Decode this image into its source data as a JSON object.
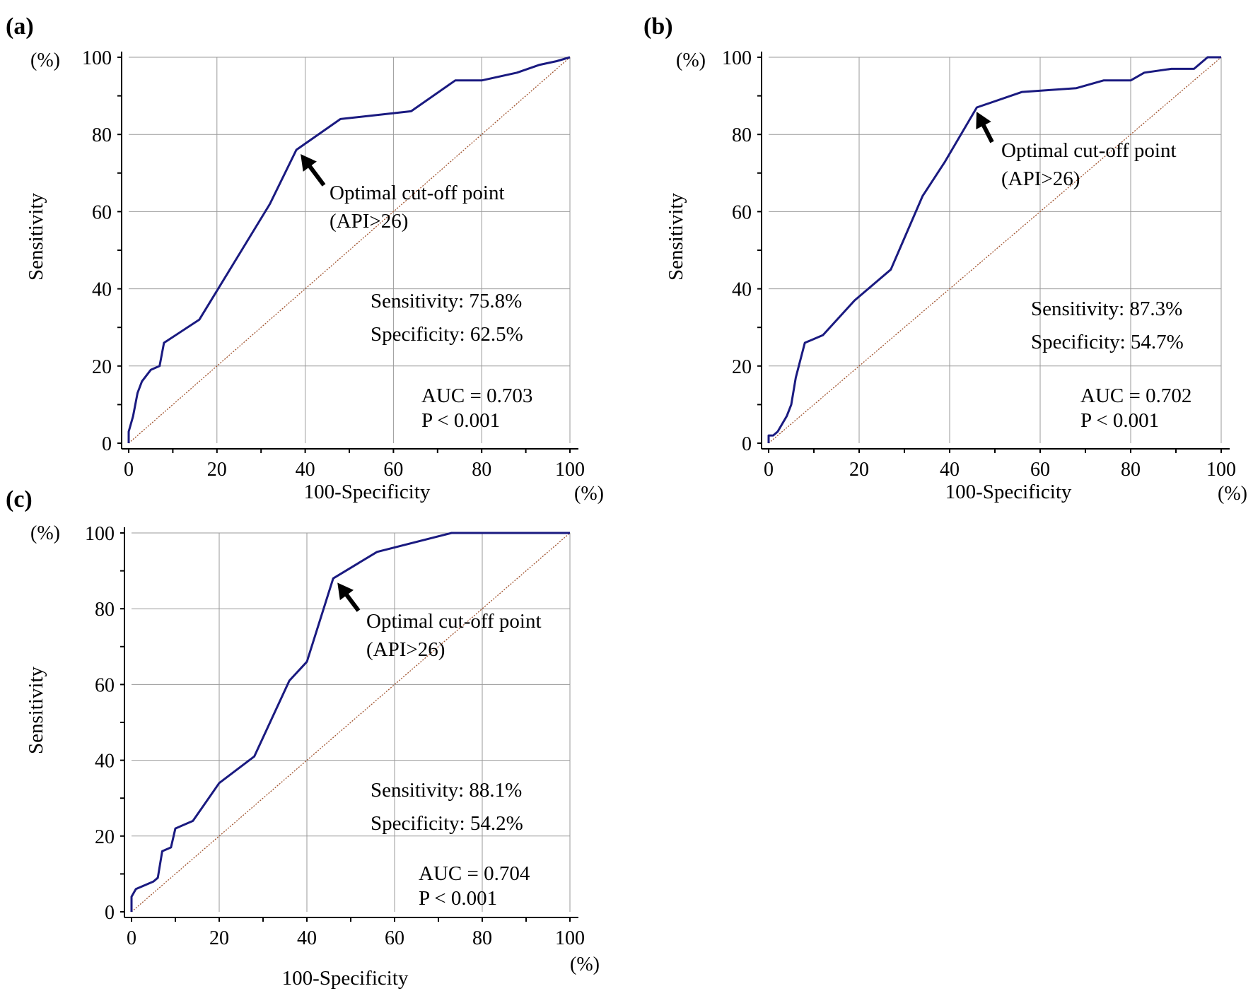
{
  "colors": {
    "roc": "#1a1a80",
    "reference": "#a0522d",
    "grid": "#9a9a9a"
  },
  "chart_data": [
    {
      "type": "line",
      "panel": "(a)",
      "xlabel": "100-Specificity",
      "ylabel": "Sensitivity",
      "x_unit": "(%)",
      "y_unit": "(%)",
      "xlim": [
        0,
        100
      ],
      "ylim": [
        0,
        100
      ],
      "xticks": [
        0,
        20,
        40,
        60,
        80,
        100
      ],
      "yticks": [
        0,
        20,
        40,
        60,
        80,
        100
      ],
      "grid": true,
      "series": [
        {
          "x": [
            0,
            0,
            1,
            2,
            3,
            5,
            7,
            8,
            16,
            24,
            32,
            38,
            48,
            64,
            74,
            80,
            88,
            93,
            97,
            100
          ],
          "y": [
            0,
            3,
            7,
            13,
            16,
            19,
            20,
            26,
            32,
            47,
            62,
            76,
            84,
            86,
            94,
            94,
            96,
            98,
            99,
            100
          ]
        }
      ],
      "reference_line": {
        "x": [
          0,
          100
        ],
        "y": [
          0,
          100
        ]
      },
      "annotation": {
        "text1": "Optimal cut-off point",
        "text2": "(API>26)",
        "point": [
          38,
          76
        ]
      },
      "sensitivity": "Sensitivity: 75.8%",
      "specificity": "Specificity: 62.5%",
      "auc": "AUC = 0.703",
      "p": "P < 0.001"
    },
    {
      "type": "line",
      "panel": "(b)",
      "xlabel": "100-Specificity",
      "ylabel": "Sensitivity",
      "x_unit": "(%)",
      "y_unit": "(%)",
      "xlim": [
        0,
        100
      ],
      "ylim": [
        0,
        100
      ],
      "xticks": [
        0,
        20,
        40,
        60,
        80,
        100
      ],
      "yticks": [
        0,
        20,
        40,
        60,
        80,
        100
      ],
      "grid": true,
      "series": [
        {
          "x": [
            0,
            0,
            1,
            2,
            4,
            5,
            6,
            8,
            12,
            19,
            27,
            34,
            39,
            46,
            56,
            68,
            74,
            80,
            83,
            89,
            94,
            97,
            100
          ],
          "y": [
            0,
            2,
            2,
            3,
            7,
            10,
            17,
            26,
            28,
            37,
            45,
            64,
            73,
            87,
            91,
            92,
            94,
            94,
            96,
            97,
            97,
            100,
            100
          ]
        }
      ],
      "reference_line": {
        "x": [
          0,
          100
        ],
        "y": [
          0,
          100
        ]
      },
      "annotation": {
        "text1": "Optimal cut-off point",
        "text2": "(API>26)",
        "point": [
          45,
          87
        ]
      },
      "sensitivity": "Sensitivity: 87.3%",
      "specificity": "Specificity: 54.7%",
      "auc": "AUC = 0.702",
      "p": "P < 0.001"
    },
    {
      "type": "line",
      "panel": "(c)",
      "xlabel": "100-Specificity",
      "ylabel": "Sensitivity",
      "x_unit": "(%)",
      "y_unit": "(%)",
      "xlim": [
        0,
        100
      ],
      "ylim": [
        0,
        100
      ],
      "xticks": [
        0,
        20,
        40,
        60,
        80,
        100
      ],
      "yticks": [
        0,
        20,
        40,
        60,
        80,
        100
      ],
      "grid": true,
      "series": [
        {
          "x": [
            0,
            0,
            1,
            5,
            6,
            7,
            9,
            10,
            14,
            20,
            28,
            36,
            40,
            46,
            56,
            73,
            100
          ],
          "y": [
            0,
            4,
            6,
            8,
            9,
            16,
            17,
            22,
            24,
            34,
            41,
            61,
            66,
            88,
            95,
            100,
            100
          ]
        }
      ],
      "reference_line": {
        "x": [
          0,
          100
        ],
        "y": [
          0,
          100
        ]
      },
      "annotation": {
        "text1": "Optimal cut-off point",
        "text2": "(API>26)",
        "point": [
          46,
          88
        ]
      },
      "sensitivity": "Sensitivity: 88.1%",
      "specificity": "Specificity: 54.2%",
      "auc": "AUC = 0.704",
      "p": "P < 0.001"
    }
  ]
}
